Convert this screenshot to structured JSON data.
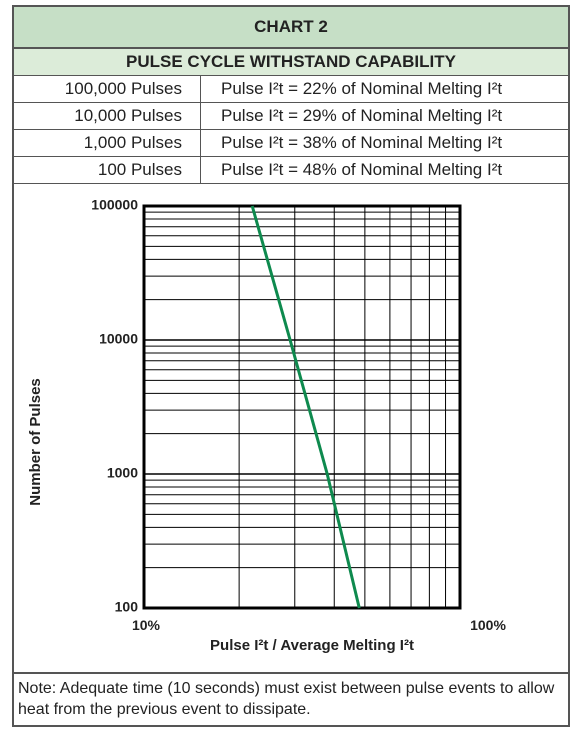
{
  "header": {
    "title": "CHART 2",
    "subtitle": "PULSE CYCLE WITHSTAND CAPABILITY"
  },
  "table": {
    "rows": [
      [
        "100,000 Pulses",
        "Pulse I²t = 22% of Nominal Melting I²t"
      ],
      [
        "10,000 Pulses",
        "Pulse I²t = 29% of Nominal Melting I²t"
      ],
      [
        "1,000 Pulses",
        "Pulse I²t = 38% of Nominal Melting I²t"
      ],
      [
        "100 Pulses",
        "Pulse I²t = 48% of Nominal Melting I²t"
      ]
    ]
  },
  "chart_data": {
    "type": "line",
    "x_label": "Pulse I²t / Average Melting I²t",
    "y_label": "Number of Pulses",
    "x": [
      22,
      29,
      38,
      48
    ],
    "series": [
      {
        "color": "#0e8a4e",
        "values": [
          100000,
          10000,
          1000,
          100
        ]
      }
    ],
    "xlim": [
      10,
      100
    ],
    "ylim": [
      100,
      100000
    ],
    "xticks": [
      {
        "value": 10,
        "label": "10%"
      },
      {
        "value": 100,
        "label": "100%"
      }
    ],
    "yticks": [
      100,
      1000,
      10000,
      100000
    ],
    "xscale": "log",
    "yscale": "log",
    "grid": true
  },
  "note": "Note: Adequate time (10 seconds) must exist between pulse events to allow heat from the previous event to dissipate."
}
